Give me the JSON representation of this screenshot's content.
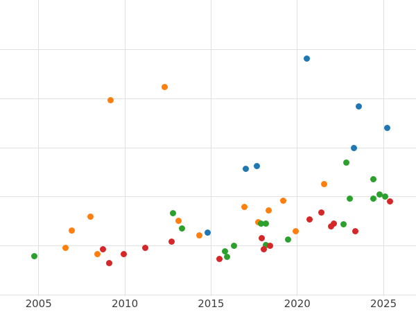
{
  "chart_data": {
    "type": "scatter",
    "title": "",
    "xlabel": "",
    "ylabel": "",
    "xlim": [
      2002.76,
      2026.9
    ],
    "ylim": [
      0,
      6.02
    ],
    "grid": true,
    "legend_position": "none",
    "x_tick_labels": [
      "2005",
      "2010",
      "2015",
      "2020",
      "2025"
    ],
    "x_tick_values": [
      2005,
      2010,
      2015,
      2020,
      2025
    ],
    "y_grid_values": [
      0,
      1,
      2,
      3,
      4,
      5
    ],
    "series": [
      {
        "name": "blue",
        "color": "#1f77b4",
        "points": [
          {
            "x": 2014.82,
            "y": 1.27
          },
          {
            "x": 2017.0,
            "y": 2.57
          },
          {
            "x": 2017.64,
            "y": 2.63
          },
          {
            "x": 2020.57,
            "y": 4.81
          },
          {
            "x": 2023.3,
            "y": 2.99
          },
          {
            "x": 2023.59,
            "y": 3.84
          },
          {
            "x": 2025.22,
            "y": 3.4
          }
        ]
      },
      {
        "name": "orange",
        "color": "#ff7f0e",
        "points": [
          {
            "x": 2006.58,
            "y": 0.96
          },
          {
            "x": 2006.94,
            "y": 1.31
          },
          {
            "x": 2008.02,
            "y": 1.59
          },
          {
            "x": 2008.43,
            "y": 0.84
          },
          {
            "x": 2009.19,
            "y": 3.97
          },
          {
            "x": 2012.33,
            "y": 4.24
          },
          {
            "x": 2013.13,
            "y": 1.51
          },
          {
            "x": 2014.31,
            "y": 1.22
          },
          {
            "x": 2016.95,
            "y": 1.8
          },
          {
            "x": 2017.72,
            "y": 1.48
          },
          {
            "x": 2018.36,
            "y": 1.73
          },
          {
            "x": 2019.17,
            "y": 1.92
          },
          {
            "x": 2019.92,
            "y": 1.3
          },
          {
            "x": 2021.55,
            "y": 2.26
          }
        ]
      },
      {
        "name": "green",
        "color": "#2ca02c",
        "points": [
          {
            "x": 2004.74,
            "y": 0.79
          },
          {
            "x": 2012.8,
            "y": 1.67
          },
          {
            "x": 2013.3,
            "y": 1.35
          },
          {
            "x": 2015.79,
            "y": 0.89
          },
          {
            "x": 2015.94,
            "y": 0.78
          },
          {
            "x": 2016.32,
            "y": 1.01
          },
          {
            "x": 2017.91,
            "y": 1.45
          },
          {
            "x": 2018.17,
            "y": 1.45
          },
          {
            "x": 2018.2,
            "y": 1.02
          },
          {
            "x": 2019.46,
            "y": 1.13
          },
          {
            "x": 2022.68,
            "y": 1.44
          },
          {
            "x": 2022.84,
            "y": 2.7
          },
          {
            "x": 2023.03,
            "y": 1.96
          },
          {
            "x": 2024.41,
            "y": 2.36
          },
          {
            "x": 2024.41,
            "y": 1.97
          },
          {
            "x": 2024.79,
            "y": 2.05
          },
          {
            "x": 2025.11,
            "y": 2.0
          }
        ]
      },
      {
        "name": "red",
        "color": "#d62728",
        "points": [
          {
            "x": 2008.74,
            "y": 0.93
          },
          {
            "x": 2009.11,
            "y": 0.65
          },
          {
            "x": 2009.95,
            "y": 0.84
          },
          {
            "x": 2011.19,
            "y": 0.96
          },
          {
            "x": 2012.72,
            "y": 1.09
          },
          {
            "x": 2015.48,
            "y": 0.74
          },
          {
            "x": 2017.95,
            "y": 1.16
          },
          {
            "x": 2018.07,
            "y": 0.94
          },
          {
            "x": 2018.41,
            "y": 1.01
          },
          {
            "x": 2020.7,
            "y": 1.54
          },
          {
            "x": 2021.39,
            "y": 1.68
          },
          {
            "x": 2021.97,
            "y": 1.4
          },
          {
            "x": 2022.13,
            "y": 1.45
          },
          {
            "x": 2023.36,
            "y": 1.3
          },
          {
            "x": 2025.39,
            "y": 1.9
          }
        ]
      }
    ],
    "style": {
      "background_color": "#ffffff",
      "gridline_color": "#e0e0e0",
      "tick_label_color": "#3b3b3b",
      "marker_diameter_px": 9
    }
  }
}
